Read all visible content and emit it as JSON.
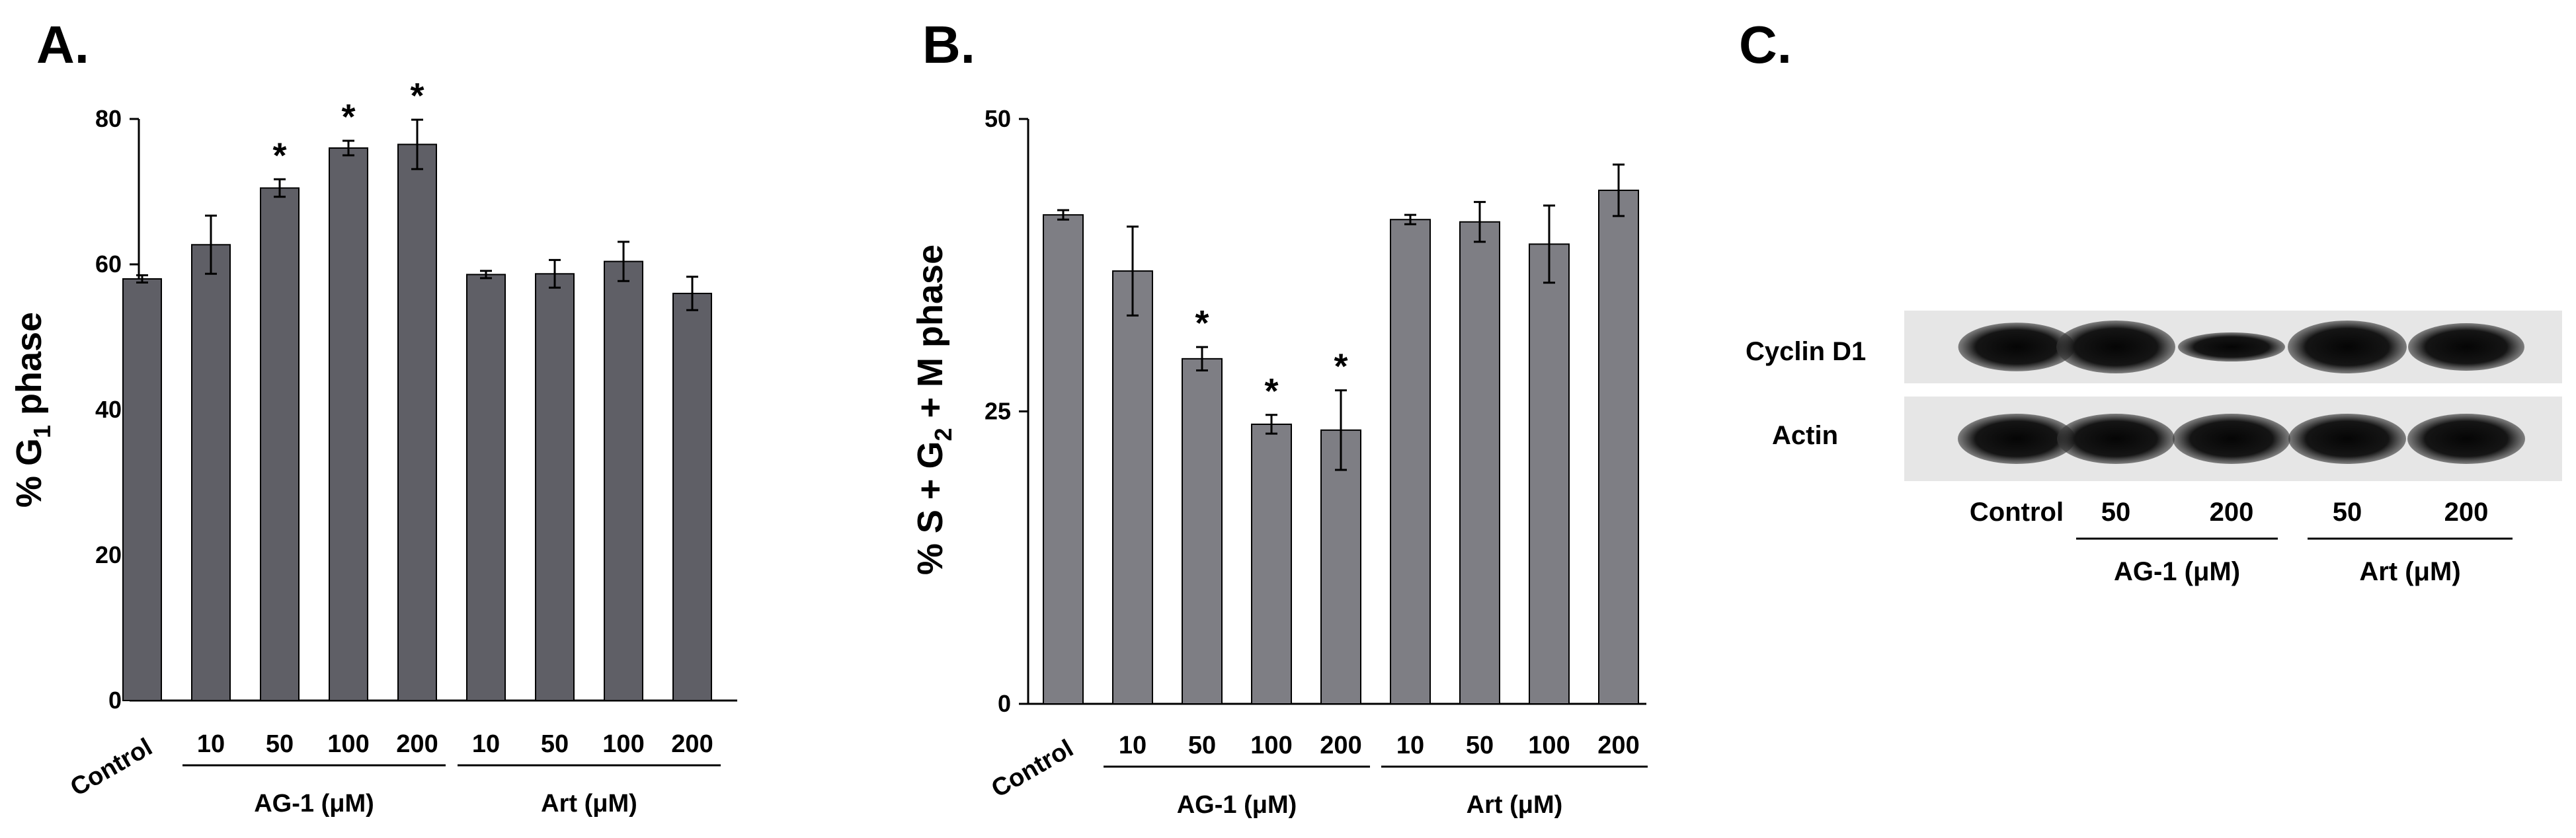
{
  "panels": {
    "a": "A.",
    "b": "B.",
    "c": "C."
  },
  "chart_data": [
    {
      "type": "bar",
      "panel": "A.",
      "ylabel": {
        "prefix": "% G",
        "sub": "1",
        "suffix": " phase"
      },
      "ylim": [
        0,
        80
      ],
      "yticks": [
        "0",
        "20",
        "40",
        "60",
        "80"
      ],
      "categories": [
        "Control",
        "10",
        "50",
        "100",
        "200",
        "10",
        "50",
        "100",
        "200"
      ],
      "values": [
        58,
        62.7,
        70.5,
        76,
        76.5,
        58.6,
        58.7,
        60.4,
        56
      ],
      "errors": [
        0.5,
        4,
        1.2,
        1,
        3.4,
        0.5,
        1.9,
        2.7,
        2.3
      ],
      "significant": [
        "",
        "",
        "*",
        "*",
        "*",
        "",
        "",
        "",
        ""
      ],
      "groups": [
        {
          "label": "AG-1 (μM)",
          "from": 1,
          "to": 4
        },
        {
          "label": "Art (μM)",
          "from": 5,
          "to": 8
        }
      ],
      "bar_color": "#5f5f66"
    },
    {
      "type": "bar",
      "panel": "B.",
      "ylabel": {
        "prefix": "% S + G",
        "sub": "2",
        "suffix": " + M phase"
      },
      "ylim": [
        0,
        50
      ],
      "yticks": [
        "0",
        "25",
        "50"
      ],
      "categories": [
        "Control",
        "10",
        "50",
        "100",
        "200",
        "10",
        "50",
        "100",
        "200"
      ],
      "values": [
        41.8,
        37,
        29.5,
        23.9,
        23.4,
        41.4,
        41.2,
        39.3,
        43.9
      ],
      "errors": [
        0.4,
        3.8,
        1,
        0.8,
        3.4,
        0.4,
        1.7,
        3.3,
        2.2
      ],
      "significant": [
        "",
        "",
        "*",
        "*",
        "*",
        "",
        "",
        "",
        ""
      ],
      "groups": [
        {
          "label": "AG-1 (μM)",
          "from": 1,
          "to": 4
        },
        {
          "label": "Art (μM)",
          "from": 5,
          "to": 8
        }
      ],
      "bar_color": "#7e7e84"
    }
  ],
  "western_blot": {
    "rows": [
      {
        "label": "Cyclin D1",
        "intensities": [
          0.92,
          1.0,
          0.55,
          1.0,
          0.9
        ]
      },
      {
        "label": "Actin",
        "intensities": [
          0.95,
          0.95,
          0.95,
          0.95,
          0.95
        ]
      }
    ],
    "lanes": [
      "Control",
      "50",
      "200",
      "50",
      "200"
    ],
    "groups": [
      {
        "label": "AG-1 (μM)",
        "from": 1,
        "to": 2
      },
      {
        "label": "Art (μM)",
        "from": 3,
        "to": 4
      }
    ]
  }
}
